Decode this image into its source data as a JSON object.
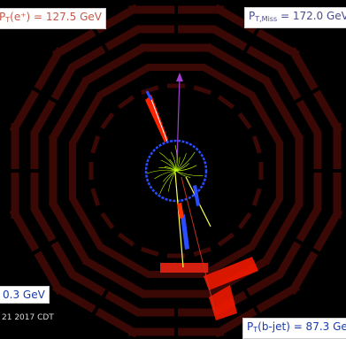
{
  "electron_label": {
    "p": "P",
    "sub": "T",
    "text": "(e⁺) = 127.5 GeV"
  },
  "met_label": {
    "p": "P",
    "sub": "T,Miss",
    "text": " = 172.0 GeV"
  },
  "bjet_label": {
    "p": "P",
    "sub": "T",
    "text": "(b-jet) = 87.3 GeV"
  },
  "partial_label": {
    "text": "0.3 GeV"
  },
  "timestamp": "21 2017 CDT",
  "colors": {
    "background": "#000000",
    "detector": "#3a0805",
    "electron_deposit": "#ff2200",
    "muon_chamber_hit": "#ff1a00",
    "tracker_ring": "#2a4dff",
    "tracks": "#bfff00",
    "met_arrow": "#a040d0",
    "jet_line": "#ffff55"
  }
}
